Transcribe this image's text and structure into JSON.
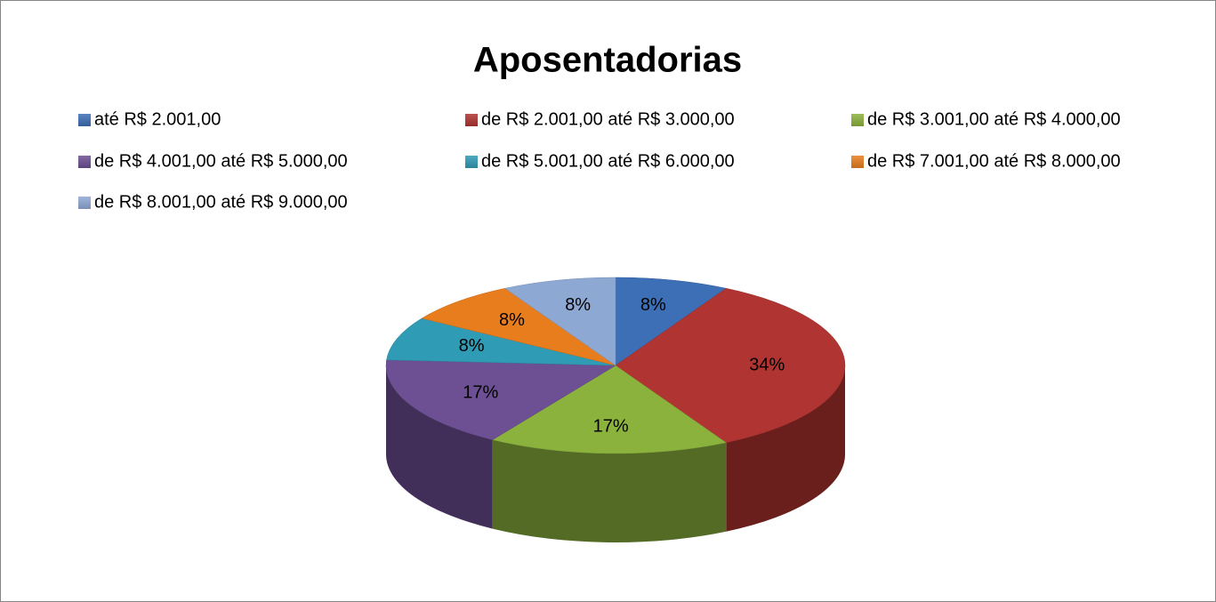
{
  "chart_data": {
    "type": "pie",
    "title": "Aposentadorias",
    "categories": [
      "até R$ 2.001,00",
      "de R$ 2.001,00 até R$ 3.000,00",
      "de R$ 3.001,00 até R$ 4.000,00",
      "de R$ 4.001,00 até R$ 5.000,00",
      "de R$ 5.001,00 até R$ 6.000,00",
      "de R$ 7.001,00 até R$ 8.000,00",
      "de R$ 8.001,00 até R$ 9.000,00"
    ],
    "values": [
      8,
      34,
      17,
      17,
      8,
      8,
      8
    ],
    "value_labels": [
      "8%",
      "34%",
      "17%",
      "17%",
      "8%",
      "8%",
      "8%"
    ],
    "colors": [
      "#3c6fb5",
      "#b03431",
      "#8bb23d",
      "#6d4f94",
      "#2f9bb5",
      "#e87d1e",
      "#8ea8d4"
    ],
    "legend": "top"
  }
}
